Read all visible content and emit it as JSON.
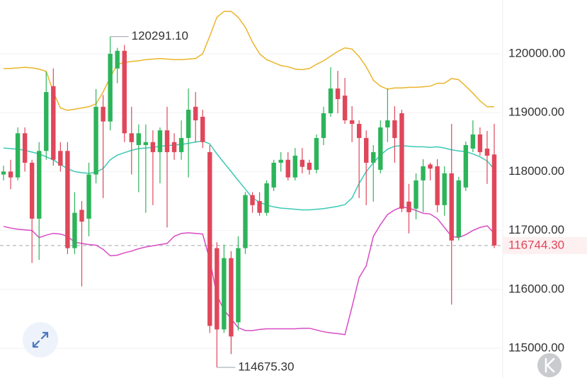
{
  "chart_data": {
    "type": "candlestick",
    "ylim": [
      114495,
      120913
    ],
    "yticks": [
      {
        "value": 120000,
        "label": "120000.00"
      },
      {
        "value": 119000,
        "label": "119000.00"
      },
      {
        "value": 118000,
        "label": "118000.00"
      },
      {
        "value": 117000,
        "label": "117000.00"
      },
      {
        "value": 116000,
        "label": "116000.00"
      },
      {
        "value": 115000,
        "label": "115000.00"
      }
    ],
    "grid": true,
    "up_color": "#2db45a",
    "down_color": "#e0475a",
    "open": [
      117950,
      118000,
      117900,
      118650,
      118150,
      117200,
      118350,
      119450,
      118350,
      118350,
      116700,
      117350,
      117200,
      117950,
      119100,
      118850,
      119750,
      120050,
      118650,
      118450,
      118450,
      118500,
      118330,
      118700,
      118500,
      118330,
      118570,
      119100,
      118930,
      118330,
      116700,
      115320,
      116530,
      115440,
      116700,
      117600,
      117500,
      117300,
      117730,
      118150,
      118200,
      117900,
      118200,
      118150,
      118030,
      118570,
      118990,
      119410,
      119290,
      118870,
      118810,
      118570,
      118150,
      118030,
      118750,
      118870,
      118990,
      117490,
      117370,
      117850,
      118120,
      118090,
      117430,
      117970,
      116890,
      117730,
      118390,
      118630,
      118390,
      118290
    ],
    "high": [
      118100,
      118200,
      118750,
      118750,
      118200,
      118500,
      119700,
      119750,
      118500,
      118500,
      117650,
      117500,
      118150,
      119400,
      119300,
      120291.1,
      120100,
      120150,
      119100,
      118800,
      118800,
      118700,
      118750,
      119100,
      118650,
      118870,
      119410,
      119350,
      119050,
      118450,
      116800,
      116760,
      116650,
      116900,
      117650,
      117650,
      117650,
      117850,
      118200,
      118330,
      118330,
      118400,
      118400,
      118200,
      118630,
      119100,
      119770,
      119710,
      119590,
      119110,
      118870,
      118700,
      118450,
      118870,
      119410,
      119110,
      119050,
      117790,
      117970,
      118210,
      118150,
      118210,
      118090,
      118810,
      117910,
      118510,
      118870,
      118750,
      118690,
      118810
    ],
    "low": [
      117850,
      117700,
      117850,
      118000,
      116450,
      116500,
      118200,
      118100,
      118000,
      116600,
      116600,
      116050,
      116900,
      117800,
      117550,
      118700,
      119500,
      118500,
      117950,
      117650,
      117300,
      117430,
      117800,
      117050,
      118200,
      118200,
      117900,
      118500,
      118400,
      115260,
      114675.3,
      115260,
      114900,
      115300,
      116600,
      117300,
      117250,
      117250,
      117670,
      118000,
      117850,
      117850,
      117970,
      117950,
      117970,
      118450,
      118930,
      118990,
      118810,
      118500,
      117550,
      117430,
      117490,
      117970,
      118500,
      118150,
      117310,
      116950,
      117190,
      117310,
      117850,
      117310,
      117250,
      115740,
      116830,
      117670,
      118330,
      118270,
      117790,
      116700
    ],
    "close": [
      118000,
      117900,
      118650,
      118150,
      117200,
      118350,
      119350,
      118200,
      118100,
      116700,
      117300,
      117150,
      117950,
      119100,
      118850,
      120000,
      120050,
      118650,
      118500,
      118650,
      118500,
      118330,
      118700,
      118330,
      118330,
      118570,
      119050,
      118870,
      118500,
      115380,
      115320,
      116530,
      115200,
      116700,
      117600,
      117430,
      117300,
      117800,
      118150,
      118200,
      117900,
      118270,
      118080,
      118030,
      118570,
      118990,
      119410,
      119230,
      118870,
      118810,
      118570,
      118150,
      118330,
      118750,
      118870,
      118570,
      117370,
      117310,
      117850,
      118090,
      118050,
      117430,
      117970,
      116830,
      117850,
      118450,
      118630,
      118330,
      118270,
      116744.3
    ],
    "lines": [
      {
        "color": "#ebb52a",
        "values": [
          119750,
          119750,
          119760,
          119770,
          119760,
          119740,
          119700,
          119350,
          119080,
          119040,
          119060,
          119080,
          119100,
          119150,
          119350,
          119600,
          119820,
          119850,
          119870,
          119880,
          119900,
          119910,
          119920,
          119910,
          119900,
          119900,
          119910,
          119920,
          120000,
          120300,
          120620,
          120720,
          120720,
          120620,
          120450,
          120200,
          120000,
          119900,
          119850,
          119800,
          119780,
          119740,
          119730,
          119750,
          119820,
          119880,
          119960,
          120040,
          120100,
          120080,
          119950,
          119780,
          119550,
          119450,
          119400,
          119420,
          119420,
          119430,
          119430,
          119440,
          119450,
          119500,
          119500,
          119580,
          119560,
          119450,
          119330,
          119200,
          119100,
          119100
        ]
      },
      {
        "color": "#3cc9b4",
        "values": [
          118400,
          118390,
          118380,
          118360,
          118330,
          118300,
          118250,
          118200,
          118120,
          118050,
          118000,
          117980,
          117970,
          117990,
          118050,
          118200,
          118280,
          118320,
          118360,
          118390,
          118400,
          118410,
          118430,
          118440,
          118450,
          118460,
          118480,
          118500,
          118520,
          118470,
          118300,
          118150,
          118000,
          117850,
          117700,
          117550,
          117480,
          117430,
          117400,
          117380,
          117370,
          117360,
          117350,
          117350,
          117360,
          117370,
          117390,
          117410,
          117440,
          117550,
          117800,
          118000,
          118150,
          118280,
          118380,
          118430,
          118440,
          118430,
          118420,
          118420,
          118410,
          118420,
          118400,
          118370,
          118350,
          118340,
          118300,
          118250,
          118180,
          118040
        ]
      },
      {
        "color": "#d94bc4",
        "values": [
          117070,
          117040,
          117020,
          117010,
          117000,
          116880,
          116920,
          116950,
          116940,
          116900,
          116800,
          116780,
          116760,
          116750,
          116680,
          116570,
          116580,
          116620,
          116650,
          116690,
          116720,
          116740,
          116760,
          116780,
          116900,
          116950,
          116960,
          116950,
          116940,
          116500,
          115900,
          115650,
          115500,
          115350,
          115300,
          115300,
          115320,
          115330,
          115330,
          115330,
          115330,
          115330,
          115340,
          115340,
          115310,
          115280,
          115260,
          115250,
          115230,
          115700,
          116200,
          116400,
          116900,
          117100,
          117270,
          117350,
          117400,
          117380,
          117340,
          117290,
          117280,
          117200,
          117050,
          116900,
          116880,
          116930,
          117000,
          117050,
          117080,
          116950
        ]
      }
    ],
    "annotations": [
      {
        "value": 120291.1,
        "label": "120291.10",
        "of": "high"
      },
      {
        "value": 114675.3,
        "label": "114675.30",
        "of": "low"
      }
    ],
    "last": {
      "value": 116744.3,
      "label": "116744.30",
      "color": "#e0475a"
    }
  }
}
